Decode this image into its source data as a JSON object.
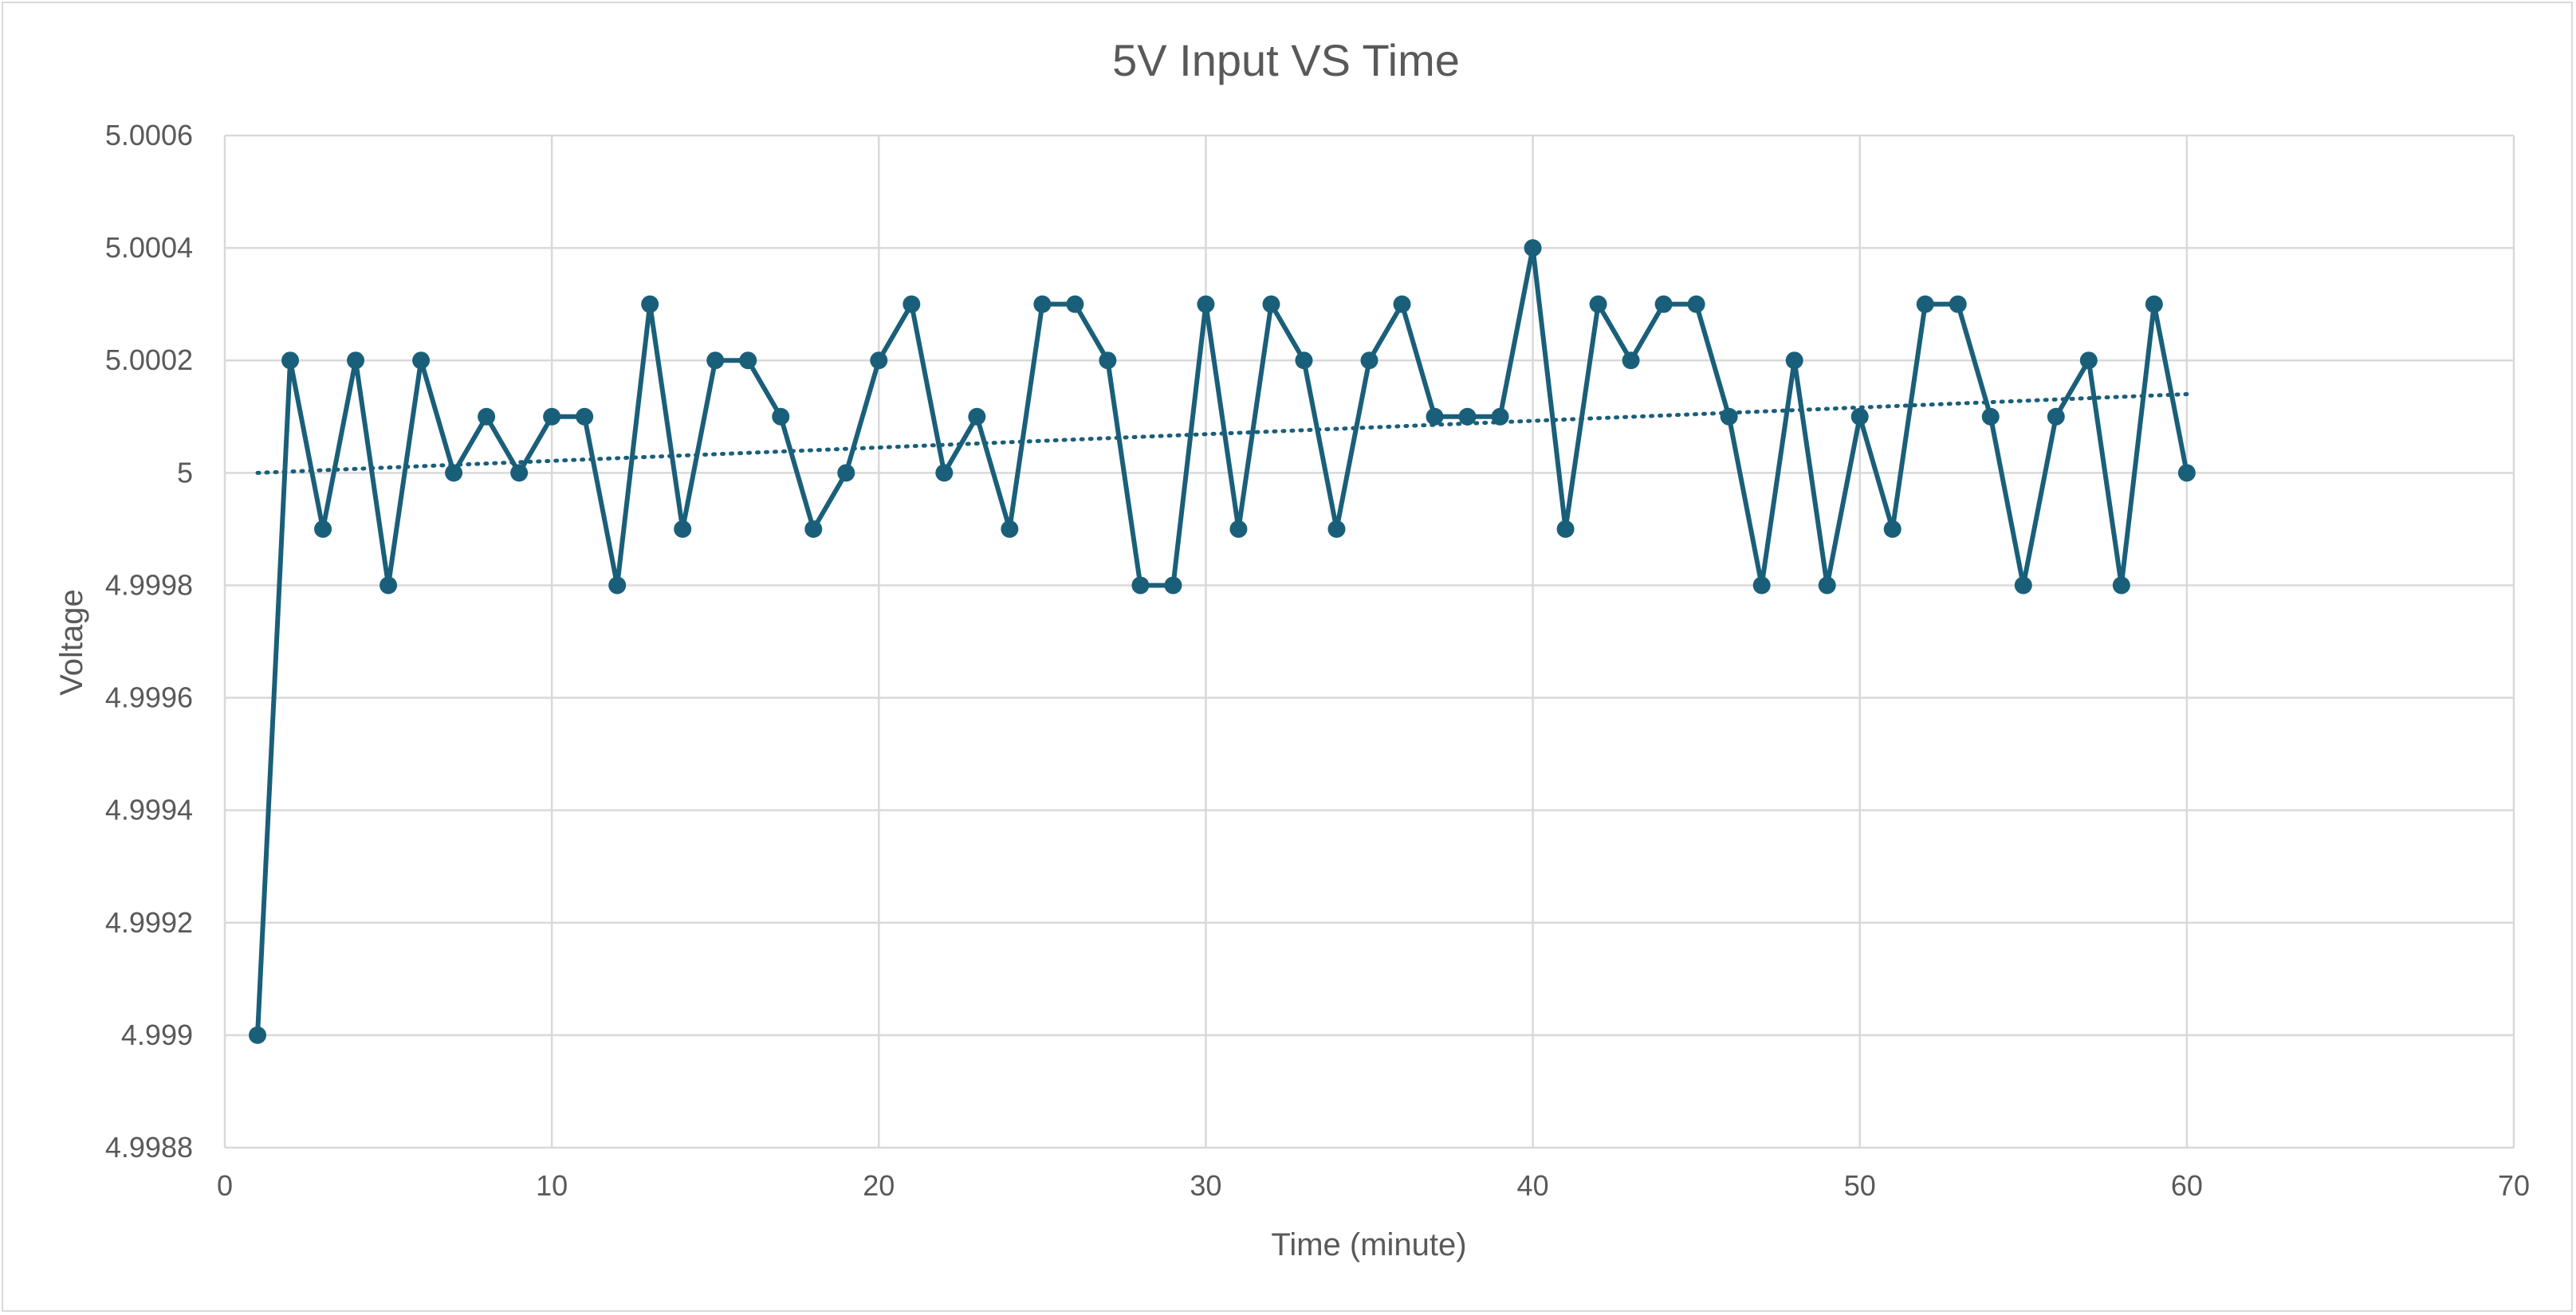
{
  "chart_data": {
    "type": "scatter",
    "title": "5V Input VS Time",
    "xlabel": "Time (minute)",
    "ylabel": "Voltage",
    "xlim": [
      0,
      70
    ],
    "ylim": [
      4.9988,
      5.0006
    ],
    "x_ticks": [
      "0",
      "10",
      "20",
      "30",
      "40",
      "50",
      "60",
      "70"
    ],
    "y_ticks": [
      "4.9988",
      "4.999",
      "4.9992",
      "4.9994",
      "4.9996",
      "4.9998",
      "5",
      "5.0002",
      "5.0004",
      "5.0006"
    ],
    "grid": true,
    "legend": "none",
    "series": [
      {
        "style": "line-with-markers",
        "color": "#1a5f7a",
        "x": [
          1,
          2,
          3,
          4,
          5,
          6,
          7,
          8,
          9,
          10,
          11,
          12,
          13,
          14,
          15,
          16,
          17,
          18,
          19,
          20,
          21,
          22,
          23,
          24,
          25,
          26,
          27,
          28,
          29,
          30,
          31,
          32,
          33,
          34,
          35,
          36,
          37,
          38,
          39,
          40,
          41,
          42,
          43,
          44,
          45,
          46,
          47,
          48,
          49,
          50,
          51,
          52,
          53,
          54,
          55,
          56,
          57,
          58,
          59,
          60
        ],
        "y": [
          4.999,
          5.0002,
          4.9999,
          5.0002,
          4.9998,
          5.0002,
          5,
          5.0001,
          5,
          5.0001,
          5.0001,
          4.9998,
          5.0003,
          4.9999,
          5.0002,
          5.0002,
          5.0001,
          4.9999,
          5,
          5.0002,
          5.0003,
          5,
          5.0001,
          4.9999,
          5.0003,
          5.0003,
          5.0002,
          4.9998,
          4.9998,
          5.0003,
          4.9999,
          5.0003,
          5.0002,
          4.9999,
          5.0002,
          5.0003,
          5.0001,
          5.0001,
          5.0001,
          5.0004,
          4.9999,
          5.0003,
          5.0002,
          5.0003,
          5.0003,
          5.0001,
          4.9998,
          5.0002,
          4.9998,
          5.0001,
          4.9999,
          5.0003,
          5.0003,
          5.0001,
          4.9998,
          5.0001,
          5.0002,
          4.9998,
          5.0003,
          5
        ]
      }
    ],
    "trendline": {
      "type": "linear",
      "style": "dotted",
      "color": "#1a5f7a",
      "x": [
        1,
        60
      ],
      "y": [
        5.0,
        5.00014
      ]
    }
  }
}
